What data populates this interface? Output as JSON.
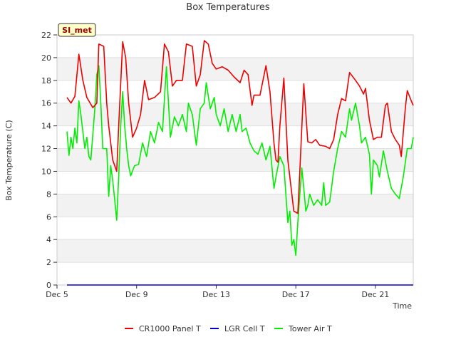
{
  "chart_data": {
    "type": "line",
    "title": "Box Temperatures",
    "xlabel": "Time",
    "ylabel": "Box Temperature (C)",
    "site_tag": "SI_met",
    "xlim": [
      5.2,
      22.9
    ],
    "ylim": [
      0,
      22
    ],
    "x_ticks": [
      {
        "value": 5,
        "label": "Dec 5"
      },
      {
        "value": 9,
        "label": "Dec 9"
      },
      {
        "value": 13,
        "label": "Dec 13"
      },
      {
        "value": 17,
        "label": "Dec 17"
      },
      {
        "value": 21,
        "label": "Dec 21"
      }
    ],
    "y_ticks": [
      0,
      2,
      4,
      6,
      8,
      10,
      12,
      14,
      16,
      18,
      20,
      22
    ],
    "legend_position": "bottom",
    "series": [
      {
        "name": "CR1000 Panel T",
        "color": "#ee0000",
        "points": [
          [
            5.5,
            16.5
          ],
          [
            5.7,
            16.0
          ],
          [
            5.9,
            16.6
          ],
          [
            6.1,
            20.3
          ],
          [
            6.3,
            18.0
          ],
          [
            6.5,
            16.5
          ],
          [
            6.8,
            15.6
          ],
          [
            7.0,
            16.0
          ],
          [
            7.1,
            21.2
          ],
          [
            7.35,
            21.0
          ],
          [
            7.5,
            16.0
          ],
          [
            7.6,
            14.0
          ],
          [
            7.8,
            11.0
          ],
          [
            8.0,
            10.0
          ],
          [
            8.1,
            14.0
          ],
          [
            8.3,
            21.4
          ],
          [
            8.45,
            20.0
          ],
          [
            8.6,
            16.0
          ],
          [
            8.8,
            13.0
          ],
          [
            9.0,
            13.8
          ],
          [
            9.2,
            15.0
          ],
          [
            9.4,
            18.0
          ],
          [
            9.6,
            16.3
          ],
          [
            9.9,
            16.5
          ],
          [
            10.2,
            17.0
          ],
          [
            10.4,
            21.2
          ],
          [
            10.6,
            20.5
          ],
          [
            10.8,
            17.5
          ],
          [
            11.0,
            18.0
          ],
          [
            11.3,
            18.0
          ],
          [
            11.5,
            21.2
          ],
          [
            11.8,
            21.0
          ],
          [
            12.0,
            17.5
          ],
          [
            12.2,
            18.5
          ],
          [
            12.4,
            21.5
          ],
          [
            12.6,
            21.2
          ],
          [
            12.8,
            19.5
          ],
          [
            13.0,
            19.0
          ],
          [
            13.3,
            19.2
          ],
          [
            13.6,
            18.9
          ],
          [
            13.9,
            18.3
          ],
          [
            14.2,
            17.8
          ],
          [
            14.4,
            18.9
          ],
          [
            14.6,
            18.5
          ],
          [
            14.8,
            15.8
          ],
          [
            14.9,
            16.7
          ],
          [
            15.2,
            16.7
          ],
          [
            15.5,
            19.3
          ],
          [
            15.7,
            17.0
          ],
          [
            15.9,
            12.5
          ],
          [
            16.0,
            11.0
          ],
          [
            16.1,
            10.8
          ],
          [
            16.2,
            14.0
          ],
          [
            16.4,
            18.2
          ],
          [
            16.6,
            11.0
          ],
          [
            16.8,
            8.0
          ],
          [
            16.9,
            6.5
          ],
          [
            17.1,
            6.3
          ],
          [
            17.2,
            10.0
          ],
          [
            17.4,
            17.7
          ],
          [
            17.6,
            12.6
          ],
          [
            17.8,
            12.5
          ],
          [
            18.0,
            12.8
          ],
          [
            18.2,
            12.3
          ],
          [
            18.5,
            12.2
          ],
          [
            18.7,
            12.0
          ],
          [
            18.9,
            12.8
          ],
          [
            19.1,
            15.0
          ],
          [
            19.3,
            16.4
          ],
          [
            19.5,
            16.2
          ],
          [
            19.7,
            18.7
          ],
          [
            20.0,
            18.0
          ],
          [
            20.2,
            17.5
          ],
          [
            20.4,
            16.8
          ],
          [
            20.5,
            17.3
          ],
          [
            20.7,
            14.5
          ],
          [
            20.9,
            12.8
          ],
          [
            21.1,
            13.0
          ],
          [
            21.3,
            13.0
          ],
          [
            21.5,
            15.8
          ],
          [
            21.6,
            16.0
          ],
          [
            21.8,
            13.5
          ],
          [
            22.0,
            12.8
          ],
          [
            22.2,
            12.3
          ],
          [
            22.3,
            11.3
          ],
          [
            22.5,
            15.5
          ],
          [
            22.6,
            17.1
          ],
          [
            22.8,
            16.2
          ],
          [
            22.9,
            15.8
          ]
        ]
      },
      {
        "name": "LGR Cell T",
        "color": "#0000cc",
        "points": [
          [
            5.5,
            0
          ],
          [
            22.9,
            0
          ]
        ]
      },
      {
        "name": "Tower Air T",
        "color": "#00ee00",
        "points": [
          [
            5.5,
            13.5
          ],
          [
            5.6,
            11.4
          ],
          [
            5.7,
            13.0
          ],
          [
            5.8,
            12.0
          ],
          [
            5.9,
            13.8
          ],
          [
            6.0,
            12.5
          ],
          [
            6.1,
            16.2
          ],
          [
            6.2,
            15.0
          ],
          [
            6.3,
            13.5
          ],
          [
            6.4,
            12.0
          ],
          [
            6.5,
            13.0
          ],
          [
            6.6,
            11.3
          ],
          [
            6.7,
            11.0
          ],
          [
            6.9,
            15.5
          ],
          [
            7.0,
            18.5
          ],
          [
            7.1,
            19.3
          ],
          [
            7.2,
            16.0
          ],
          [
            7.3,
            12.0
          ],
          [
            7.5,
            12.0
          ],
          [
            7.6,
            7.8
          ],
          [
            7.7,
            10.5
          ],
          [
            7.8,
            9.2
          ],
          [
            7.9,
            7.5
          ],
          [
            8.0,
            5.7
          ],
          [
            8.1,
            9.5
          ],
          [
            8.2,
            14.0
          ],
          [
            8.3,
            17.0
          ],
          [
            8.4,
            14.0
          ],
          [
            8.5,
            12.0
          ],
          [
            8.6,
            10.5
          ],
          [
            8.7,
            9.6
          ],
          [
            8.9,
            10.5
          ],
          [
            9.1,
            10.6
          ],
          [
            9.3,
            12.5
          ],
          [
            9.5,
            11.3
          ],
          [
            9.7,
            13.5
          ],
          [
            9.9,
            12.5
          ],
          [
            10.1,
            14.3
          ],
          [
            10.3,
            13.5
          ],
          [
            10.5,
            19.2
          ],
          [
            10.7,
            13.0
          ],
          [
            10.9,
            14.8
          ],
          [
            11.1,
            14.0
          ],
          [
            11.3,
            15.0
          ],
          [
            11.5,
            13.5
          ],
          [
            11.6,
            16.0
          ],
          [
            11.8,
            15.0
          ],
          [
            12.0,
            12.3
          ],
          [
            12.2,
            15.5
          ],
          [
            12.4,
            16.0
          ],
          [
            12.5,
            17.8
          ],
          [
            12.7,
            15.5
          ],
          [
            12.9,
            16.5
          ],
          [
            13.0,
            15.0
          ],
          [
            13.2,
            14.0
          ],
          [
            13.4,
            15.5
          ],
          [
            13.6,
            13.5
          ],
          [
            13.8,
            15.0
          ],
          [
            14.0,
            13.5
          ],
          [
            14.2,
            15.0
          ],
          [
            14.3,
            13.5
          ],
          [
            14.5,
            13.8
          ],
          [
            14.7,
            12.5
          ],
          [
            14.9,
            11.8
          ],
          [
            15.1,
            11.5
          ],
          [
            15.3,
            12.5
          ],
          [
            15.5,
            11.0
          ],
          [
            15.7,
            12.2
          ],
          [
            15.9,
            8.5
          ],
          [
            16.0,
            9.5
          ],
          [
            16.2,
            11.3
          ],
          [
            16.4,
            10.5
          ],
          [
            16.5,
            8.0
          ],
          [
            16.6,
            5.5
          ],
          [
            16.7,
            6.5
          ],
          [
            16.8,
            3.5
          ],
          [
            16.9,
            4.0
          ],
          [
            17.0,
            2.6
          ],
          [
            17.1,
            5.5
          ],
          [
            17.2,
            8.0
          ],
          [
            17.3,
            10.3
          ],
          [
            17.4,
            8.5
          ],
          [
            17.5,
            6.5
          ],
          [
            17.6,
            7.0
          ],
          [
            17.7,
            8.0
          ],
          [
            17.9,
            7.0
          ],
          [
            18.1,
            7.5
          ],
          [
            18.3,
            7.0
          ],
          [
            18.4,
            9.0
          ],
          [
            18.5,
            7.0
          ],
          [
            18.7,
            7.3
          ],
          [
            18.9,
            10.0
          ],
          [
            19.1,
            12.0
          ],
          [
            19.3,
            13.5
          ],
          [
            19.5,
            13.0
          ],
          [
            19.7,
            15.5
          ],
          [
            19.8,
            14.5
          ],
          [
            20.0,
            16.0
          ],
          [
            20.2,
            14.0
          ],
          [
            20.3,
            12.5
          ],
          [
            20.5,
            13.0
          ],
          [
            20.7,
            11.5
          ],
          [
            20.8,
            8.0
          ],
          [
            20.9,
            11.0
          ],
          [
            21.1,
            10.5
          ],
          [
            21.2,
            9.5
          ],
          [
            21.4,
            11.8
          ],
          [
            21.6,
            10.0
          ],
          [
            21.8,
            8.5
          ],
          [
            22.0,
            8.0
          ],
          [
            22.2,
            7.6
          ],
          [
            22.4,
            9.5
          ],
          [
            22.6,
            12.0
          ],
          [
            22.8,
            12.0
          ],
          [
            22.9,
            13.0
          ]
        ]
      }
    ]
  }
}
